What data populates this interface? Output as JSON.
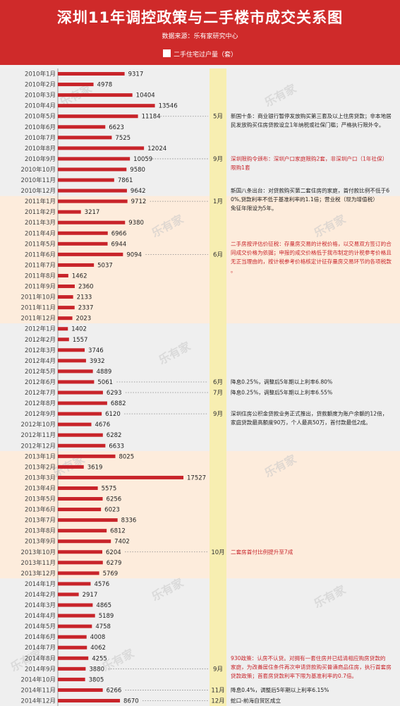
{
  "title": "深圳11年调控政策与二手楼市成交关系图",
  "source": "数据来源：乐有家研究中心",
  "legend": "二手住宅过户量（套）",
  "watermark": "乐有家",
  "colors": {
    "header": "#cf2a2a",
    "bar": "#c8242a",
    "band_odd": "#fdecdc",
    "band_even": "#efefef",
    "month_col": "#f7eeb1",
    "policy_red": "#c8242a"
  },
  "chart_data": {
    "type": "bar",
    "orientation": "horizontal",
    "categories": [
      "2010年1月",
      "2010年2月",
      "2010年3月",
      "2010年4月",
      "2010年5月",
      "2010年6月",
      "2010年7月",
      "2010年8月",
      "2010年9月",
      "2010年10月",
      "2010年11月",
      "2010年12月",
      "2011年1月",
      "2011年2月",
      "2011年3月",
      "2011年4月",
      "2011年5月",
      "2011年6月",
      "2011年7月",
      "2011年8月",
      "2011年9月",
      "2011年10月",
      "2011年11月",
      "2011年12月",
      "2012年1月",
      "2012年2月",
      "2012年3月",
      "2012年4月",
      "2012年5月",
      "2012年6月",
      "2012年7月",
      "2012年8月",
      "2012年9月",
      "2012年10月",
      "2012年11月",
      "2012年12月",
      "2013年1月",
      "2013年2月",
      "2013年3月",
      "2013年4月",
      "2013年5月",
      "2013年6月",
      "2013年7月",
      "2013年8月",
      "2013年9月",
      "2013年10月",
      "2013年11月",
      "2013年12月",
      "2014年1月",
      "2014年2月",
      "2014年3月",
      "2014年4月",
      "2014年5月",
      "2014年6月",
      "2014年7月",
      "2014年8月",
      "2014年9月",
      "2014年10月",
      "2014年11月",
      "2014年12月"
    ],
    "values": [
      9317,
      4978,
      10404,
      13546,
      11184,
      6623,
      7525,
      12024,
      10059,
      9580,
      7861,
      9642,
      9712,
      3217,
      9380,
      6966,
      6944,
      9094,
      5037,
      1462,
      2360,
      2133,
      2337,
      2023,
      1402,
      1557,
      3746,
      3932,
      4889,
      5061,
      6293,
      6882,
      6120,
      4676,
      6282,
      6633,
      8025,
      3619,
      17527,
      5575,
      6256,
      6023,
      8336,
      6812,
      7402,
      6204,
      6279,
      5769,
      4576,
      2917,
      4865,
      5189,
      4758,
      4008,
      4062,
      4255,
      3880,
      3805,
      6266,
      8670
    ],
    "series": [
      {
        "name": "二手住宅过户量（套）"
      }
    ],
    "xlim": [
      0,
      17527
    ],
    "grid": false,
    "legend_position": "top-center"
  },
  "policies": [
    {
      "month": "5月",
      "row": 4,
      "marker_row": 4,
      "rows": [
        4,
        5,
        6
      ],
      "color": "dark",
      "text": "新国十条：商业银行暂停发放购买第三套及以上住房贷款；非本地居民发放购买住房贷款设立1年纳税或社保门槛；严格执行限外令。"
    },
    {
      "month": "9月",
      "row": 8,
      "marker_row": 8,
      "rows": [
        8,
        9
      ],
      "color": "red",
      "text": "深圳限购令颁布：深圳户口家庭限购2套，非深圳户口（1年社保）限购1套"
    },
    {
      "month": "1月",
      "row": 12,
      "marker_row": 12,
      "rows": [
        11,
        12,
        13,
        14
      ],
      "color": "dark",
      "text": "新国八条出台：对贷款购买第二套住房的家庭，首付款比例不低于60%,贷款利率不低于基准利率的1.1倍；营业税（现为增值税）免征年限设为5年。"
    },
    {
      "month": "6月",
      "row": 17,
      "marker_row": 17,
      "rows": [
        16,
        17,
        18,
        19,
        20,
        21
      ],
      "color": "red",
      "text": "二手房按评估价征税：存量房交易的计税价格，以交易双方签订的合同成交价格为依据；申报的成交价格低于我市制定的计税参考价格且无正当理由的，按计税参考价格核定计征存量房交易环节的各项税款。"
    },
    {
      "month": "6月",
      "row": 29,
      "marker_row": 29,
      "rows": [
        29
      ],
      "color": "dark",
      "text": "降息0.25%，调整后5年期以上利率6.80%"
    },
    {
      "month": "7月",
      "row": 30,
      "marker_row": 30,
      "rows": [
        30
      ],
      "color": "dark",
      "text": "降息0.25%，调整后5年期以上利率6.55%"
    },
    {
      "month": "9月",
      "row": 32,
      "marker_row": 32,
      "rows": [
        32,
        33,
        34
      ],
      "color": "dark",
      "text": "深圳住房公积金贷款业务正式推出，贷款额度为账户余额的12倍，家庭贷款最高额度90万，个人最高50万，首付款最低2成。"
    },
    {
      "month": "10月",
      "row": 45,
      "marker_row": 45,
      "rows": [
        45
      ],
      "color": "red",
      "text": "二套房首付比例提升至7成"
    },
    {
      "month": "9月",
      "row": 56,
      "marker_row": 56,
      "rows": [
        55,
        56,
        57
      ],
      "color": "red",
      "text": "930政策：认房不认贷。对拥有一套住房并已结清相应购房贷款的家庭，为改善居住条件再次申请贷款购买普通商品住房，执行首套房贷款政策；首套房贷款利率下限为基准利率的0.7倍。"
    },
    {
      "month": "11月",
      "row": 58,
      "marker_row": 58,
      "rows": [
        58
      ],
      "color": "dark",
      "text": "降息0.4%，调整后5年期以上利率6.15%"
    },
    {
      "month": "12月",
      "row": 59,
      "marker_row": 59,
      "rows": [
        59
      ],
      "color": "dark",
      "text": "蛇口-前海自贸区成立"
    }
  ]
}
